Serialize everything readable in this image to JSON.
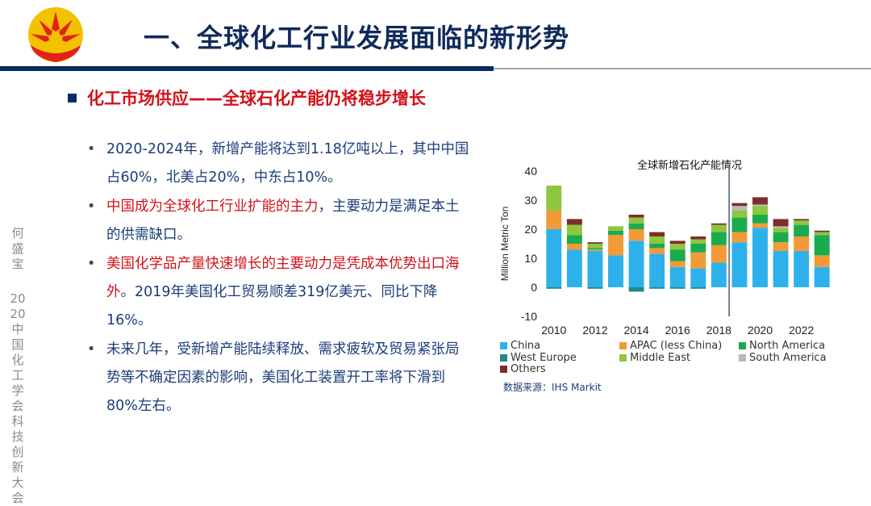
{
  "header": {
    "title": "一、全球化工行业发展面临的新形势"
  },
  "subtitle": "化工市场供应——全球石化产能仍将稳步增长",
  "bullets": [
    {
      "parts": [
        {
          "text": "2020-2024年，新增产能将达到1.18亿吨以上，其中中国占60%，北美占20%，中东占10%。",
          "red": false
        }
      ]
    },
    {
      "parts": [
        {
          "text": "中国成为全球化工行业扩能的主力",
          "red": true
        },
        {
          "text": "，主要动力是满足本土的供需缺口。",
          "red": false
        }
      ]
    },
    {
      "parts": [
        {
          "text": "美国化学品产量快速增长的主要动力是凭成本优势出口海外",
          "red": true
        },
        {
          "text": "。2019年美国化工贸易顺差319亿美元、同比下降16%。",
          "red": false
        }
      ]
    },
    {
      "parts": [
        {
          "text": "未来几年，受新增产能陆续释放、需求疲软及贸易紧张局势等不确定因素的影响，美国化工装置开工率将下滑到80%左右。",
          "red": false
        }
      ]
    }
  ],
  "side_text": {
    "line1": "何盛宝",
    "line2": "2020中国化工学会科技创新大会"
  },
  "source": "数据来源：IHS Markit",
  "colors": {
    "title": "#0f2a5c",
    "accent_red": "#d1121b",
    "navy": "#0b2a66"
  },
  "chart_data": {
    "type": "bar",
    "stacked": true,
    "title": "全球新增石化产能情况",
    "ylabel": "Million Metric Ton",
    "xlabel": "",
    "ylim": [
      -10,
      40
    ],
    "yticks": [
      -10,
      0,
      10,
      20,
      30,
      40
    ],
    "categories": [
      2010,
      2011,
      2012,
      2013,
      2014,
      2015,
      2016,
      2017,
      2018,
      2019,
      2020,
      2021,
      2022,
      2023
    ],
    "xtick_labels": [
      "2010",
      "2012",
      "2014",
      "2016",
      "2018",
      "2020",
      "2022"
    ],
    "xtick_positions": [
      2010,
      2012,
      2014,
      2016,
      2018,
      2020,
      2022
    ],
    "divider_after": 2018,
    "series": [
      {
        "name": "China",
        "color": "#2eb1ea",
        "values": [
          20,
          13,
          12.5,
          11,
          16,
          11.5,
          7,
          6.5,
          8.5,
          15.5,
          20.5,
          12.5,
          12.5,
          7
        ]
      },
      {
        "name": "APAC (less China)",
        "color": "#f29a38",
        "values": [
          6.5,
          2,
          0.5,
          7,
          4,
          2,
          2,
          5.5,
          6,
          3.5,
          1.5,
          3,
          5,
          4
        ]
      },
      {
        "name": "North America",
        "color": "#1bab4f",
        "values": [
          0,
          3,
          0.5,
          1.5,
          2,
          1.5,
          4,
          3,
          4.5,
          5,
          3,
          3.5,
          4,
          7
        ]
      },
      {
        "name": "West Europe",
        "color": "#1f8a8a",
        "values": [
          0,
          0,
          0,
          0,
          0,
          0,
          0,
          0,
          0,
          0,
          0,
          0,
          0,
          0
        ]
      },
      {
        "name": "Middle East",
        "color": "#8dc63f",
        "values": [
          8.5,
          3.5,
          1.5,
          1.5,
          2,
          2.5,
          2,
          1.5,
          2.5,
          2.5,
          3,
          1.5,
          1.5,
          1
        ]
      },
      {
        "name": "South America",
        "color": "#b9b9b9",
        "values": [
          0,
          0,
          0,
          0,
          0,
          0,
          0,
          0,
          0,
          1.5,
          0.5,
          0.5,
          0,
          0
        ]
      },
      {
        "name": "Others",
        "color": "#7b2f2b",
        "values": [
          0,
          2,
          0.5,
          0,
          1,
          1.5,
          1,
          1,
          0.5,
          1,
          2.5,
          2.5,
          0.5,
          0.5
        ]
      }
    ],
    "negative_values": [
      -0.5,
      0,
      -0.5,
      0,
      -1.5,
      -0.5,
      -0.5,
      -0.5,
      0,
      0,
      0,
      0,
      0,
      0
    ],
    "negative_color": "#1f8a8a"
  }
}
